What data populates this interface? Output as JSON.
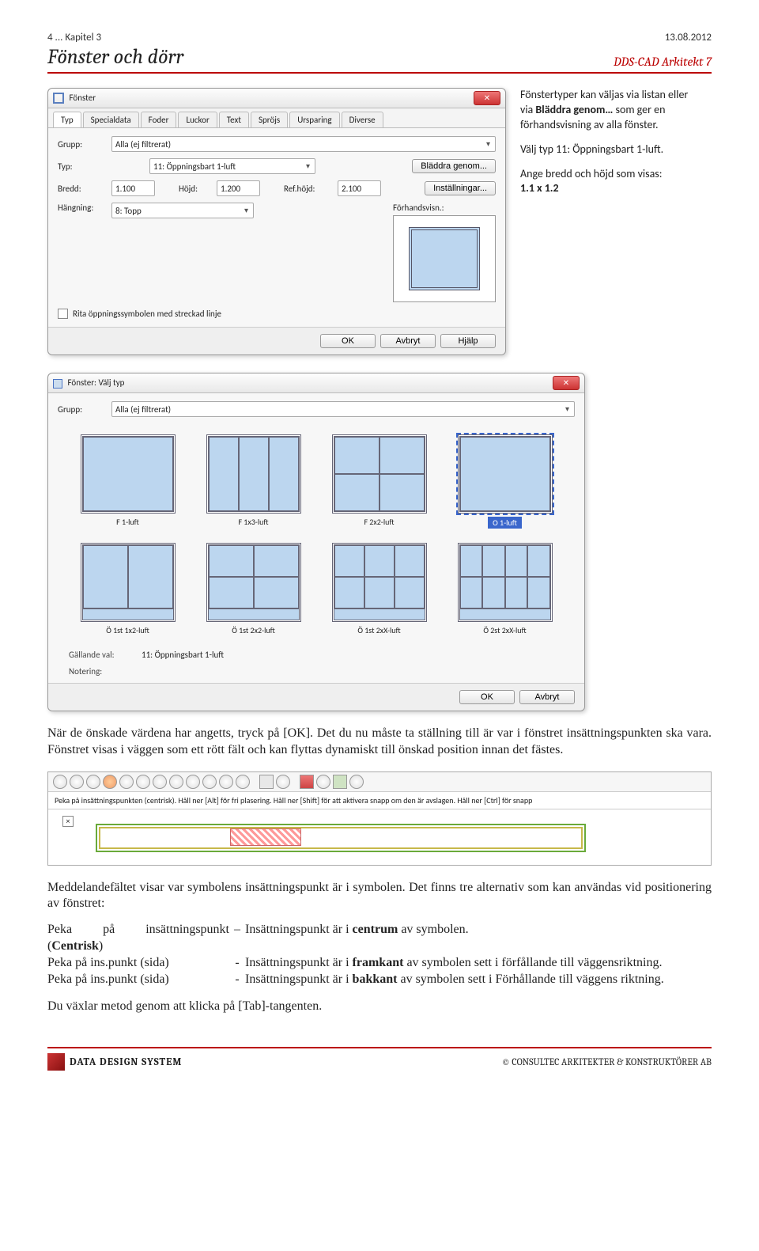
{
  "header": {
    "page_no": "4",
    "chapter_prefix": "... Kapitel 3",
    "chapter_title": "Fönster och dörr",
    "date": "13.08.2012",
    "product": "DDS-CAD Arkitekt 7"
  },
  "side": {
    "p1a": "Fönstertyper kan väljas via listan eller via ",
    "p1b": "Bläddra genom…",
    "p1c": " som ger en förhandsvisning av alla fönster.",
    "p2": "Välj typ 11: Öppningsbart 1-luft.",
    "p3": "Ange bredd och höjd som visas:",
    "p4": "1.1 x 1.2"
  },
  "dlg1": {
    "title": "Fönster",
    "tabs": [
      "Typ",
      "Specialdata",
      "Foder",
      "Luckor",
      "Text",
      "Spröjs",
      "Ursparing",
      "Diverse"
    ],
    "grupp_label": "Grupp:",
    "grupp_value": "Alla (ej filtrerat)",
    "typ_label": "Typ:",
    "typ_value": "11: Öppningsbart 1-luft",
    "bladdra": "Bläddra genom...",
    "bredd_label": "Bredd:",
    "bredd_value": "1.100",
    "hojd_label": "Höjd:",
    "hojd_value": "1.200",
    "refh_label": "Ref.höjd:",
    "refh_value": "2.100",
    "inst": "Inställningar...",
    "hang_label": "Hängning:",
    "hang_value": "8: Topp",
    "preview_label": "Förhandsvisn.:",
    "checkbox": "Rita öppningssymbolen med streckad linje",
    "ok": "OK",
    "avbryt": "Avbryt",
    "hjalp": "Hjälp"
  },
  "dlg2": {
    "title": "Fönster: Välj typ",
    "grupp_label": "Grupp:",
    "grupp_value": "Alla (ej filtrerat)",
    "thumbs": [
      {
        "label": "F 1-luft",
        "grid": "1x1"
      },
      {
        "label": "F 1x3-luft",
        "grid": "1x3"
      },
      {
        "label": "F 2x2-luft",
        "grid": "2x2"
      },
      {
        "label": "O 1-luft",
        "grid": "1x1",
        "selected": true
      },
      {
        "label": "Ö 1st 1x2-luft",
        "grid": "1x2b"
      },
      {
        "label": "Ö 1st 2x2-luft",
        "grid": "2x2b"
      },
      {
        "label": "Ö 1st 2xX-luft",
        "grid": "2x3b"
      },
      {
        "label": "Ö 2st 2xX-luft",
        "grid": "2x4b"
      }
    ],
    "gall_label": "Gällande val:",
    "gall_value": "11: Öppningsbart 1-luft",
    "not_label": "Notering:",
    "ok": "OK",
    "avbryt": "Avbryt"
  },
  "toolbarHint": "Peka på insättningspunkten (centrisk). Håll ner [Alt] för fri plasering. Håll ner [Shift] för att aktivera snapp om den är avslagen. Håll ner [Ctrl] för snapp",
  "body": {
    "p1": "När de önskade värdena har angetts, tryck på [OK].",
    "p2": "Det du nu måste ta ställning till är var i fönstret insättningspunkten ska vara. Fönstret visas i väggen som ett rött fält och kan flyttas dynamiskt till önskad position innan det fästes.",
    "p3": "Meddelandefältet visar var symbolens insättningspunkt är i symbolen. Det finns tre alternativ som kan användas vid positionering av fönstret:",
    "opt1_l": "Peka på insättningspunkt (Centrisk)",
    "opt1_r": "Insättningspunkt är i centrum av symbolen.",
    "opt2_l": "Peka på ins.punkt (sida)",
    "opt2_r_a": "Insättningspunkt är i ",
    "opt2_r_b": "framkant",
    "opt2_r_c": " av symbolen sett i förfållande till väggensriktning.",
    "opt3_l": "Peka på ins.punkt (sida)",
    "opt3_r_a": "Insättningspunkt är i ",
    "opt3_r_b": "bakkant",
    "opt3_r_c": " av symbolen sett i Förhållande till väggens riktning.",
    "p4": "Du växlar metod genom att klicka på [Tab]-tangenten."
  },
  "footer": {
    "brand": "DATA DESIGN SYSTEM",
    "right": "© CONSULTEC ARKITEKTER & KONSTRUKTÖRER AB"
  }
}
